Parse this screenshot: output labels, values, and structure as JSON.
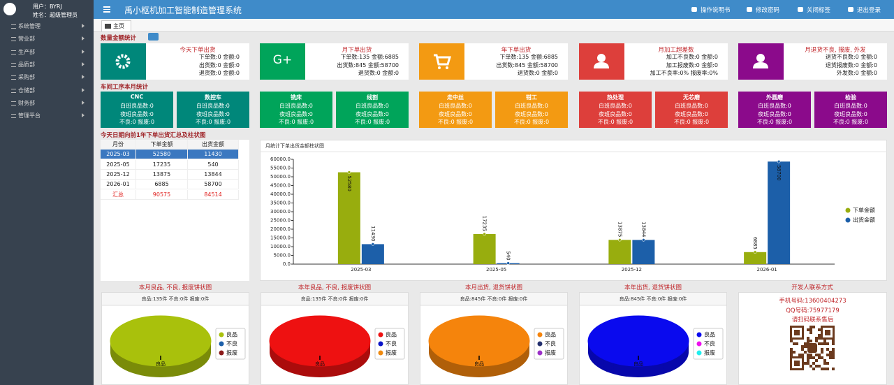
{
  "sidebar": {
    "user": "用户：BYRJ",
    "name": "姓名：超级管理员",
    "menu": [
      "系统管理",
      "营业部",
      "生产部",
      "品质部",
      "采购部",
      "仓储部",
      "财务部",
      "管理平台"
    ]
  },
  "header": {
    "title": "禹小枢机加工智能制造管理系统",
    "links": [
      "操作说明书",
      "修改密码",
      "关闭标签",
      "退出登录"
    ]
  },
  "tab": "主页",
  "summary": {
    "title": "数量金额统计",
    "cards": [
      {
        "title": "今天下单出货",
        "lines": [
          "下单数:0 金额:0",
          "出货数:0 金额:0",
          "退货数:0 金额:0"
        ]
      },
      {
        "title": "月下单出货",
        "icon": "G+",
        "lines": [
          "下单数:135 金额:6885",
          "出货数:845 金额:58700",
          "退货数:0 金额:0"
        ]
      },
      {
        "title": "年下单出货",
        "lines": [
          "下单数:135 金额:6885",
          "出货数:845 金额:58700",
          "退货数:0 金额:0"
        ]
      },
      {
        "title": "月加工超差数",
        "lines": [
          "加工不良数:0 金额:0",
          "加工报废数:0 金额:0",
          "加工不良率:0% 报废率:0%"
        ]
      },
      {
        "title": "月退货不良, 报废, 外发",
        "lines": [
          "退货不良数:0 金额:0",
          "退货报废数:0 金额:0",
          "外发数:0 金额:0"
        ]
      }
    ]
  },
  "workshop": {
    "title": "车间工序本月统计",
    "boxes": [
      {
        "title": "CNC",
        "lines": [
          "白班良品数:0",
          "夜班良品数:0",
          "不良:0 报废:0"
        ]
      },
      {
        "title": "数控车",
        "lines": [
          "白班良品数:0",
          "夜班良品数:0",
          "不良:0 报废:0"
        ]
      },
      {
        "title": "铣床",
        "lines": [
          "白班良品数:0",
          "夜班良品数:0",
          "不良:0 报废:0"
        ]
      },
      {
        "title": "线割",
        "lines": [
          "白班良品数:0",
          "夜班良品数:0",
          "不良:0 报废:0"
        ]
      },
      {
        "title": "走中丝",
        "lines": [
          "白班良品数:0",
          "夜班良品数:0",
          "不良:0 报废:0"
        ]
      },
      {
        "title": "钳工",
        "lines": [
          "白班良品数:0",
          "夜班良品数:0",
          "不良:0 报废:0"
        ]
      },
      {
        "title": "热处理",
        "lines": [
          "白班良品数:0",
          "夜班良品数:0",
          "不良:0 报废:0"
        ]
      },
      {
        "title": "无芯磨",
        "lines": [
          "白班良品数:0",
          "夜班良品数:0",
          "不良:0 报废:0"
        ]
      },
      {
        "title": "外圆磨",
        "lines": [
          "白班良品数:0",
          "夜班良品数:0",
          "不良:0 报废:0"
        ]
      },
      {
        "title": "检验",
        "lines": [
          "白班良品数:0",
          "夜班良品数:0",
          "不良:0 报废:0"
        ]
      }
    ]
  },
  "yearly": {
    "title": "今天日期向前1年下单出货汇总及柱状图",
    "table": {
      "header": [
        "月份",
        "下单金额",
        "出货金额"
      ],
      "rows": [
        [
          "2025-03",
          52580,
          11430
        ],
        [
          "2025-05",
          17235,
          540
        ],
        [
          "2025-12",
          13875,
          13844
        ],
        [
          "2026-01",
          6885,
          58700
        ]
      ],
      "total": [
        "汇总",
        90575,
        84514
      ]
    }
  },
  "pie_titles": [
    "本月良品, 不良, 报废饼状图",
    "本年良品, 不良, 报废饼状图",
    "本月出货, 退货饼状图",
    "本年出货, 退货饼状图",
    "开发人联系方式"
  ],
  "contact": {
    "phone": "手机号码:13600404273",
    "qq": "QQ号码:75977179",
    "note": "请扫码联系售后"
  },
  "chart_data": [
    {
      "type": "bar",
      "title": "月统计下单出货金额柱状图",
      "categories": [
        "2025-03",
        "2025-05",
        "2025-12",
        "2026-01"
      ],
      "series": [
        {
          "name": "下单金额",
          "color": "#98ad0e",
          "values": [
            52580,
            17235,
            13875,
            6885
          ]
        },
        {
          "name": "出货金额",
          "color": "#1c5fa9",
          "values": [
            11430,
            540,
            13844,
            58700
          ]
        }
      ],
      "ylim": [
        0,
        60000
      ],
      "yticks": [
        {
          "value": 0,
          "label": "0.0"
        },
        {
          "value": 5000,
          "label": "5000.0"
        },
        {
          "value": 10000,
          "label": "10000.0"
        },
        {
          "value": 15000,
          "label": "15000.0"
        },
        {
          "value": 20000,
          "label": "20000.0"
        },
        {
          "value": 25000,
          "label": "25000.0"
        },
        {
          "value": 30000,
          "label": "30000.0"
        },
        {
          "value": 35000,
          "label": "35000.0"
        },
        {
          "value": 40000,
          "label": "40000.0"
        },
        {
          "value": 45000,
          "label": "45000.0"
        },
        {
          "value": 50000,
          "label": "50000.0"
        },
        {
          "value": 55000,
          "label": "55000.0"
        },
        {
          "value": 60000,
          "label": "60000.0"
        }
      ],
      "grid": false,
      "legend": "right"
    },
    {
      "type": "pie",
      "subtitle": "良品:135件 不良:0件 报废:0件",
      "categories": [
        "良品",
        "不良",
        "报废"
      ],
      "values": [
        135,
        0,
        0
      ],
      "colors": [
        "#a9c10c",
        "#1c5fa9",
        "#8b1a1a"
      ],
      "legend": "right"
    },
    {
      "type": "pie",
      "subtitle": "良品:135件 不良:0件 报废:0件",
      "categories": [
        "良品",
        "不良",
        "报废"
      ],
      "values": [
        135,
        0,
        0
      ],
      "colors": [
        "#ee1111",
        "#0a14c8",
        "#ef8a10"
      ],
      "legend": "right"
    },
    {
      "type": "pie",
      "subtitle": "良品:845件 不良:0件 报废:0件",
      "categories": [
        "良品",
        "不良",
        "报废"
      ],
      "values": [
        845,
        0,
        0
      ],
      "colors": [
        "#f5840c",
        "#24306e",
        "#9b30c8"
      ],
      "legend": "right"
    },
    {
      "type": "pie",
      "subtitle": "良品:845件 不良:0件 报废:0件",
      "categories": [
        "良品",
        "不良",
        "报废"
      ],
      "values": [
        845,
        0,
        0
      ],
      "colors": [
        "#0a0aee",
        "#ee10ee",
        "#20eeee"
      ],
      "legend": "right"
    }
  ]
}
